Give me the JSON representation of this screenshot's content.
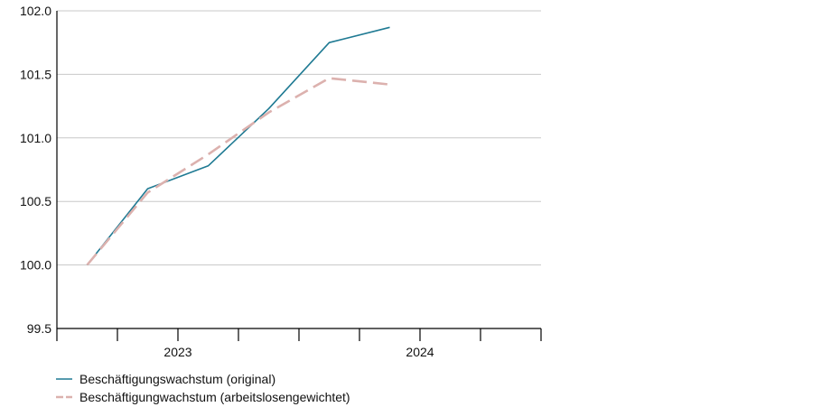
{
  "chart_data": {
    "type": "line",
    "title": "",
    "xlabel": "",
    "ylabel": "",
    "x": [
      "2023-Q1",
      "2023-Q2",
      "2023-Q3",
      "2023-Q4",
      "2024-Q1",
      "2024-Q2"
    ],
    "x_groups": [
      {
        "label": "2023",
        "quarters": [
          "2023-Q1",
          "2023-Q2",
          "2023-Q3",
          "2023-Q4"
        ]
      },
      {
        "label": "2024",
        "quarters": [
          "2024-Q1",
          "2024-Q2"
        ]
      }
    ],
    "ylim": [
      99.5,
      102.0
    ],
    "yticks": [
      99.5,
      100.0,
      100.5,
      101.0,
      101.5,
      102.0
    ],
    "ytick_labels": [
      "99.5",
      "100.0",
      "100.5",
      "101.0",
      "101.5",
      "102.0"
    ],
    "grid": true,
    "legend_position": "bottom-left",
    "series": [
      {
        "name": "Beschäftigungswachstum (original)",
        "color": "#1f7a93",
        "style": "solid",
        "values": [
          100.0,
          100.6,
          100.78,
          101.23,
          101.75,
          101.87
        ]
      },
      {
        "name": "Beschäftigungwachstum (arbeitslosengewichtet)",
        "color": "#dcb1ae",
        "style": "dashed",
        "values": [
          100.0,
          100.57,
          100.87,
          101.2,
          101.47,
          101.42
        ]
      }
    ]
  }
}
